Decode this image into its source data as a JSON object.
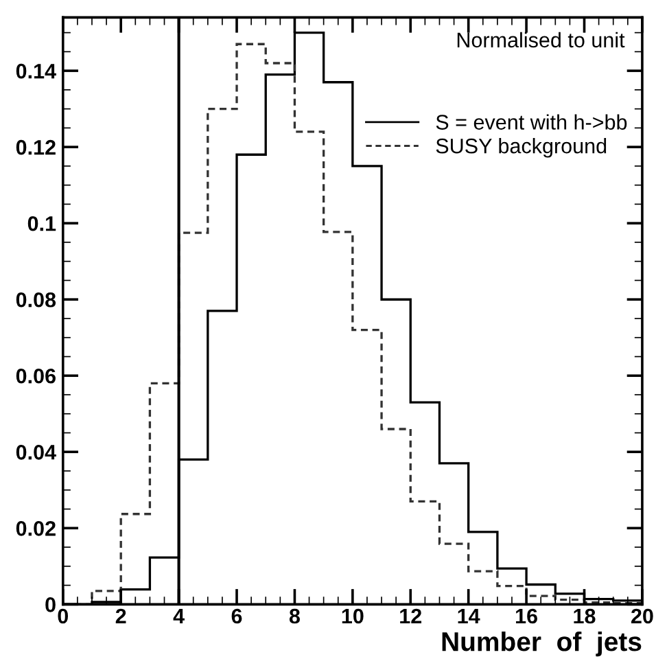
{
  "chart_data": {
    "type": "histogram",
    "xlabel": "Number  of  jets",
    "bins": [
      0,
      1,
      2,
      3,
      4,
      5,
      6,
      7,
      8,
      9,
      10,
      11,
      12,
      13,
      14,
      15,
      16,
      17,
      18,
      19,
      20
    ],
    "series": [
      {
        "name": "S = event with h->bb",
        "color": "#000000",
        "line_style": "solid",
        "values": [
          0,
          0.0006,
          0.0039,
          0.0123,
          0.038,
          0.077,
          0.118,
          0.139,
          0.15,
          0.137,
          0.115,
          0.08,
          0.053,
          0.037,
          0.019,
          0.0094,
          0.0052,
          0.0028,
          0.0014,
          0.001
        ]
      },
      {
        "name": "SUSY background",
        "color": "#333333",
        "line_style": "dashed",
        "values": [
          0,
          0.0035,
          0.0237,
          0.058,
          0.0975,
          0.13,
          0.147,
          0.142,
          0.124,
          0.0977,
          0.072,
          0.046,
          0.027,
          0.0159,
          0.0087,
          0.0048,
          0.0022,
          0.0012,
          0.0005,
          0.0003
        ]
      }
    ],
    "xlim": [
      0,
      20
    ],
    "ylim": [
      0,
      0.154
    ],
    "xticks": [
      0,
      2,
      4,
      6,
      8,
      10,
      12,
      14,
      16,
      18,
      20
    ],
    "yticks": [
      0,
      0.02,
      0.04,
      0.06,
      0.08,
      0.1,
      0.12,
      0.14
    ],
    "ref_lines": [
      {
        "axis": "x",
        "value": 4,
        "color": "#000000",
        "line_style": "solid"
      }
    ],
    "annotations": [
      "Normalised to unit"
    ],
    "legend": "top right",
    "grid": false
  }
}
